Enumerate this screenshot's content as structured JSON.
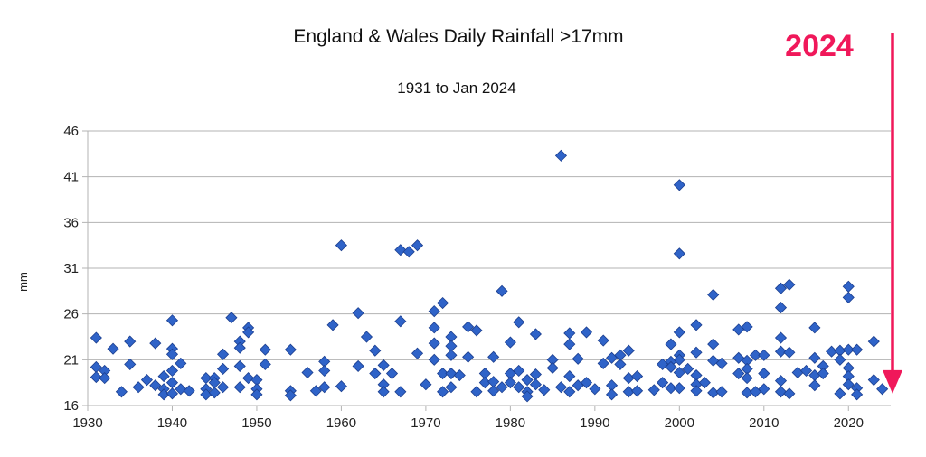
{
  "chart_data": {
    "type": "scatter",
    "title": "England & Wales Daily Rainfall >17mm",
    "subtitle": "1931 to Jan 2024",
    "ylabel": "mm",
    "xlabel": "",
    "xlim": [
      1930,
      2025
    ],
    "ylim": [
      16,
      46
    ],
    "x_ticks": [
      "1930",
      "1940",
      "1950",
      "1960",
      "1970",
      "1980",
      "1990",
      "2000",
      "2010",
      "2020"
    ],
    "y_ticks": [
      "16",
      "21",
      "26",
      "31",
      "36",
      "41",
      "46"
    ],
    "grid": "horizontal",
    "marker_color": "#2f63c8",
    "annotation": {
      "text": "2024",
      "color": "#f0185a",
      "arrow_to": [
        2025,
        17.3
      ]
    },
    "points": [
      [
        1931,
        23.4
      ],
      [
        1931,
        20.2
      ],
      [
        1931,
        19.1
      ],
      [
        1932,
        19.8
      ],
      [
        1932,
        19.0
      ],
      [
        1933,
        22.2
      ],
      [
        1934,
        17.5
      ],
      [
        1935,
        23.0
      ],
      [
        1935,
        20.5
      ],
      [
        1936,
        18.0
      ],
      [
        1937,
        18.8
      ],
      [
        1938,
        22.8
      ],
      [
        1938,
        18.2
      ],
      [
        1939,
        19.2
      ],
      [
        1939,
        17.8
      ],
      [
        1939,
        17.2
      ],
      [
        1940,
        25.3
      ],
      [
        1940,
        22.2
      ],
      [
        1940,
        21.6
      ],
      [
        1940,
        19.8
      ],
      [
        1940,
        18.5
      ],
      [
        1940,
        17.3
      ],
      [
        1941,
        20.6
      ],
      [
        1941,
        17.8
      ],
      [
        1942,
        17.6
      ],
      [
        1944,
        19.0
      ],
      [
        1944,
        17.8
      ],
      [
        1944,
        17.2
      ],
      [
        1945,
        19.0
      ],
      [
        1945,
        18.5
      ],
      [
        1945,
        17.4
      ],
      [
        1946,
        20.0
      ],
      [
        1946,
        18.0
      ],
      [
        1946,
        21.6
      ],
      [
        1947,
        25.6
      ],
      [
        1948,
        23.0
      ],
      [
        1948,
        22.3
      ],
      [
        1948,
        20.3
      ],
      [
        1948,
        18.0
      ],
      [
        1949,
        24.5
      ],
      [
        1949,
        24.0
      ],
      [
        1949,
        19.0
      ],
      [
        1950,
        18.8
      ],
      [
        1950,
        17.8
      ],
      [
        1950,
        17.2
      ],
      [
        1951,
        22.1
      ],
      [
        1951,
        20.5
      ],
      [
        1954,
        22.1
      ],
      [
        1954,
        17.6
      ],
      [
        1954,
        17.1
      ],
      [
        1956,
        19.6
      ],
      [
        1957,
        17.6
      ],
      [
        1958,
        20.8
      ],
      [
        1958,
        19.8
      ],
      [
        1958,
        18.0
      ],
      [
        1959,
        24.8
      ],
      [
        1960,
        33.5
      ],
      [
        1960,
        18.1
      ],
      [
        1962,
        26.1
      ],
      [
        1962,
        20.3
      ],
      [
        1963,
        23.5
      ],
      [
        1964,
        22.0
      ],
      [
        1964,
        19.5
      ],
      [
        1965,
        20.4
      ],
      [
        1965,
        18.3
      ],
      [
        1965,
        17.5
      ],
      [
        1966,
        19.5
      ],
      [
        1967,
        25.2
      ],
      [
        1967,
        17.5
      ],
      [
        1967,
        33.0
      ],
      [
        1968,
        32.8
      ],
      [
        1969,
        33.5
      ],
      [
        1969,
        21.7
      ],
      [
        1970,
        18.3
      ],
      [
        1971,
        26.3
      ],
      [
        1971,
        24.5
      ],
      [
        1971,
        22.8
      ],
      [
        1971,
        21.0
      ],
      [
        1972,
        27.2
      ],
      [
        1972,
        19.5
      ],
      [
        1972,
        17.5
      ],
      [
        1973,
        23.5
      ],
      [
        1973,
        22.5
      ],
      [
        1973,
        21.5
      ],
      [
        1973,
        19.5
      ],
      [
        1973,
        18.0
      ],
      [
        1974,
        19.3
      ],
      [
        1975,
        24.6
      ],
      [
        1975,
        21.3
      ],
      [
        1976,
        24.2
      ],
      [
        1976,
        17.5
      ],
      [
        1977,
        19.5
      ],
      [
        1977,
        18.5
      ],
      [
        1978,
        17.6
      ],
      [
        1978,
        21.3
      ],
      [
        1978,
        18.6
      ],
      [
        1979,
        28.5
      ],
      [
        1979,
        18.0
      ],
      [
        1980,
        22.9
      ],
      [
        1980,
        19.5
      ],
      [
        1980,
        18.5
      ],
      [
        1981,
        25.1
      ],
      [
        1981,
        19.8
      ],
      [
        1981,
        18.0
      ],
      [
        1982,
        18.8
      ],
      [
        1982,
        17.5
      ],
      [
        1982,
        17.0
      ],
      [
        1983,
        23.8
      ],
      [
        1983,
        19.4
      ],
      [
        1983,
        18.3
      ],
      [
        1984,
        17.7
      ],
      [
        1985,
        21.0
      ],
      [
        1985,
        20.1
      ],
      [
        1986,
        43.3
      ],
      [
        1986,
        18.0
      ],
      [
        1987,
        23.9
      ],
      [
        1987,
        22.7
      ],
      [
        1987,
        19.2
      ],
      [
        1987,
        17.5
      ],
      [
        1988,
        21.1
      ],
      [
        1988,
        18.2
      ],
      [
        1989,
        24.0
      ],
      [
        1989,
        18.5
      ],
      [
        1990,
        17.8
      ],
      [
        1991,
        23.1
      ],
      [
        1991,
        20.6
      ],
      [
        1992,
        21.2
      ],
      [
        1992,
        18.2
      ],
      [
        1992,
        17.2
      ],
      [
        1993,
        20.5
      ],
      [
        1993,
        21.5
      ],
      [
        1994,
        22.0
      ],
      [
        1994,
        19.0
      ],
      [
        1994,
        17.5
      ],
      [
        1995,
        19.2
      ],
      [
        1995,
        17.6
      ],
      [
        1997,
        17.7
      ],
      [
        1998,
        20.5
      ],
      [
        1998,
        18.5
      ],
      [
        1999,
        22.7
      ],
      [
        1999,
        20.8
      ],
      [
        1999,
        20.2
      ],
      [
        1999,
        17.9
      ],
      [
        2000,
        40.1
      ],
      [
        2000,
        32.6
      ],
      [
        2000,
        24.0
      ],
      [
        2000,
        21.5
      ],
      [
        2000,
        21.0
      ],
      [
        2000,
        19.6
      ],
      [
        2000,
        17.9
      ],
      [
        2001,
        20.0
      ],
      [
        2002,
        24.8
      ],
      [
        2002,
        21.8
      ],
      [
        2002,
        19.3
      ],
      [
        2002,
        18.3
      ],
      [
        2002,
        17.6
      ],
      [
        2003,
        18.5
      ],
      [
        2004,
        28.1
      ],
      [
        2004,
        22.7
      ],
      [
        2004,
        20.9
      ],
      [
        2004,
        17.4
      ],
      [
        2005,
        20.6
      ],
      [
        2005,
        17.5
      ],
      [
        2007,
        24.3
      ],
      [
        2007,
        21.2
      ],
      [
        2007,
        19.5
      ],
      [
        2008,
        24.6
      ],
      [
        2008,
        20.9
      ],
      [
        2008,
        20.0
      ],
      [
        2008,
        19.0
      ],
      [
        2008,
        17.4
      ],
      [
        2009,
        21.5
      ],
      [
        2009,
        17.5
      ],
      [
        2010,
        21.5
      ],
      [
        2010,
        19.5
      ],
      [
        2010,
        17.8
      ],
      [
        2012,
        28.8
      ],
      [
        2012,
        26.7
      ],
      [
        2012,
        23.4
      ],
      [
        2012,
        21.9
      ],
      [
        2012,
        18.7
      ],
      [
        2012,
        17.5
      ],
      [
        2013,
        29.2
      ],
      [
        2013,
        21.8
      ],
      [
        2013,
        17.3
      ],
      [
        2014,
        19.6
      ],
      [
        2015,
        19.8
      ],
      [
        2016,
        24.5
      ],
      [
        2016,
        21.2
      ],
      [
        2016,
        19.3
      ],
      [
        2016,
        18.2
      ],
      [
        2017,
        20.3
      ],
      [
        2017,
        19.5
      ],
      [
        2018,
        21.9
      ],
      [
        2019,
        22.0
      ],
      [
        2019,
        21.0
      ],
      [
        2019,
        17.3
      ],
      [
        2020,
        29.0
      ],
      [
        2020,
        27.8
      ],
      [
        2020,
        22.1
      ],
      [
        2020,
        20.1
      ],
      [
        2020,
        19.2
      ],
      [
        2020,
        18.3
      ],
      [
        2021,
        22.1
      ],
      [
        2021,
        17.9
      ],
      [
        2021,
        17.2
      ],
      [
        2023,
        23.0
      ],
      [
        2023,
        18.8
      ],
      [
        2024,
        17.8
      ]
    ]
  }
}
